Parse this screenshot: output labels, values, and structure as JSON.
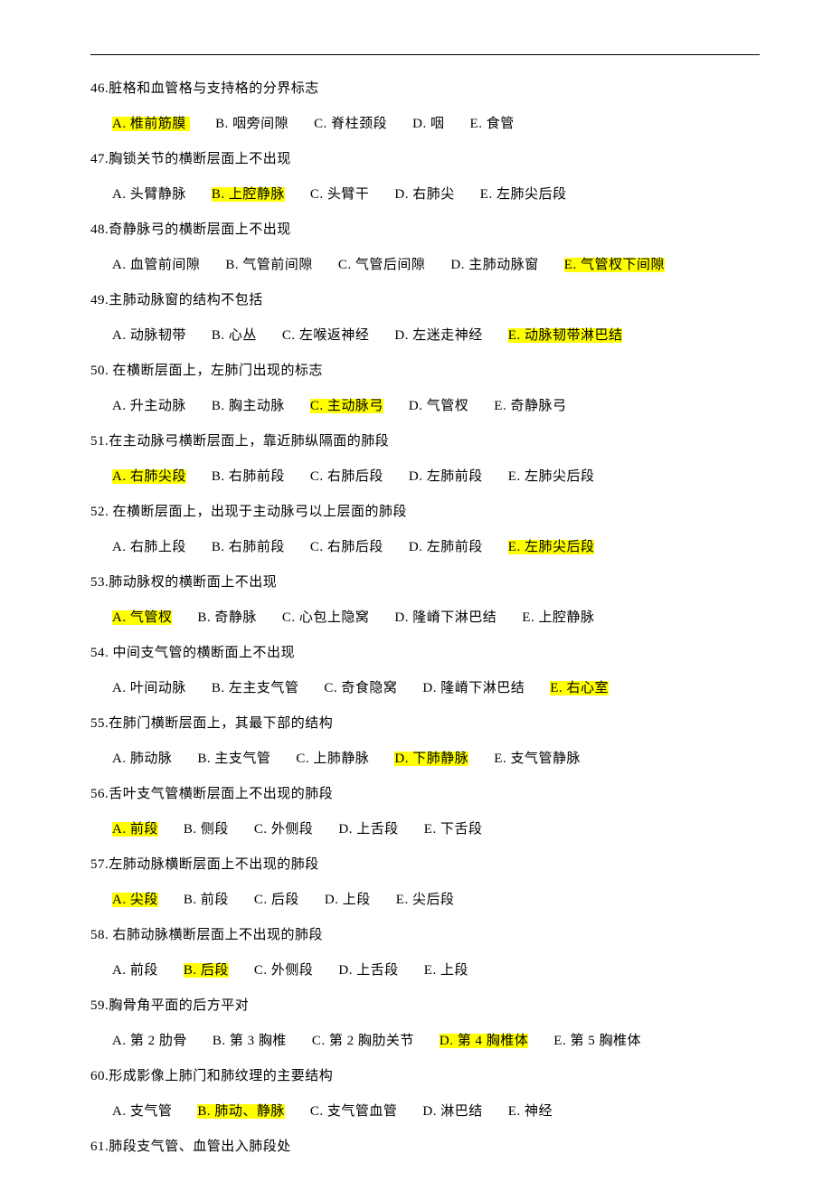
{
  "highlight_color": "#ffff00",
  "questions": [
    {
      "num": "46.",
      "stem": "脏格和血管格与支持格的分界标志",
      "opts": [
        {
          "k": "A.",
          "t": "椎前筋膜",
          "hl": true,
          "pad": true
        },
        {
          "k": "B.",
          "t": "咽旁间隙"
        },
        {
          "k": "C.",
          "t": "脊柱颈段"
        },
        {
          "k": "D.",
          "t": "咽"
        },
        {
          "k": "E.",
          "t": "食管"
        }
      ]
    },
    {
      "num": "47.",
      "stem": "胸锁关节的横断层面上不出现",
      "opts": [
        {
          "k": "A.",
          "t": "头臂静脉"
        },
        {
          "k": "B.",
          "t": "上腔静脉",
          "hl": true
        },
        {
          "k": "C.",
          "t": "头臂干"
        },
        {
          "k": "D.",
          "t": "右肺尖"
        },
        {
          "k": "E.",
          "t": "左肺尖后段"
        }
      ]
    },
    {
      "num": "48.",
      "stem": "奇静脉弓的横断层面上不出现",
      "opts": [
        {
          "k": "A.",
          "t": "血管前间隙"
        },
        {
          "k": "B.",
          "t": "气管前间隙"
        },
        {
          "k": "C.",
          "t": "气管后间隙"
        },
        {
          "k": "D.",
          "t": "主肺动脉窗"
        },
        {
          "k": "E.",
          "t": "气管杈下间隙",
          "hl": true
        }
      ]
    },
    {
      "num": "49.",
      "stem": "主肺动脉窗的结构不包括",
      "opts": [
        {
          "k": "A.",
          "t": "动脉韧带"
        },
        {
          "k": "B.",
          "t": "心丛"
        },
        {
          "k": "C.",
          "t": "左喉返神经"
        },
        {
          "k": "D.",
          "t": "左迷走神经"
        },
        {
          "k": "E.",
          "t": "动脉韧带淋巴结",
          "hl": true
        }
      ]
    },
    {
      "num": "50.",
      "stem": " 在横断层面上，左肺门出现的标志",
      "opts": [
        {
          "k": "A.",
          "t": "升主动脉"
        },
        {
          "k": "B.",
          "t": "胸主动脉"
        },
        {
          "k": "C.",
          "t": "主动脉弓",
          "hl": true
        },
        {
          "k": "D.",
          "t": "气管杈"
        },
        {
          "k": "E.",
          "t": "奇静脉弓"
        }
      ]
    },
    {
      "num": "51.",
      "stem": "在主动脉弓横断层面上，靠近肺纵隔面的肺段",
      "opts": [
        {
          "k": "A.",
          "t": "右肺尖段",
          "hl": true
        },
        {
          "k": "B.",
          "t": "右肺前段"
        },
        {
          "k": "C.",
          "t": "右肺后段"
        },
        {
          "k": "D.",
          "t": "左肺前段"
        },
        {
          "k": "E.",
          "t": "左肺尖后段"
        }
      ]
    },
    {
      "num": "52.",
      "stem": " 在横断层面上，出现于主动脉弓以上层面的肺段",
      "opts": [
        {
          "k": "A.",
          "t": "右肺上段"
        },
        {
          "k": "B.",
          "t": "右肺前段"
        },
        {
          "k": "C.",
          "t": "右肺后段"
        },
        {
          "k": "D.",
          "t": "左肺前段"
        },
        {
          "k": "E.",
          "t": "左肺尖后段",
          "hl": true
        }
      ]
    },
    {
      "num": "53.",
      "stem": "肺动脉杈的横断面上不出现",
      "opts": [
        {
          "k": "A.",
          "t": "气管杈",
          "hl": true
        },
        {
          "k": "B.",
          "t": "奇静脉"
        },
        {
          "k": "C.",
          "t": "心包上隐窝"
        },
        {
          "k": "D.",
          "t": "隆嵴下淋巴结"
        },
        {
          "k": "E.",
          "t": "上腔静脉"
        }
      ]
    },
    {
      "num": "54.",
      "stem": " 中间支气管的横断面上不出现",
      "opts": [
        {
          "k": "A.",
          "t": "叶间动脉"
        },
        {
          "k": "B.",
          "t": "左主支气管"
        },
        {
          "k": "C.",
          "t": "奇食隐窝"
        },
        {
          "k": "D.",
          "t": "隆嵴下淋巴结"
        },
        {
          "k": "E.",
          "t": "右心室",
          "hl": true
        }
      ]
    },
    {
      "num": "55.",
      "stem": "在肺门横断层面上，其最下部的结构",
      "opts": [
        {
          "k": "A.",
          "t": "肺动脉"
        },
        {
          "k": "B.",
          "t": "主支气管"
        },
        {
          "k": "C.",
          "t": "上肺静脉"
        },
        {
          "k": "D.",
          "t": "下肺静脉",
          "hl": true
        },
        {
          "k": "E.",
          "t": "支气管静脉"
        }
      ]
    },
    {
      "num": "56.",
      "stem": "舌叶支气管横断层面上不出现的肺段",
      "opts": [
        {
          "k": "A.",
          "t": "前段",
          "hl": true
        },
        {
          "k": "B.",
          "t": "侧段"
        },
        {
          "k": "C.",
          "t": "外侧段"
        },
        {
          "k": "D.",
          "t": "上舌段"
        },
        {
          "k": "E.",
          "t": "下舌段"
        }
      ]
    },
    {
      "num": "57.",
      "stem": "左肺动脉横断层面上不出现的肺段",
      "opts": [
        {
          "k": "A.",
          "t": "尖段",
          "hl": true
        },
        {
          "k": "B.",
          "t": " 前段"
        },
        {
          "k": "C.",
          "t": "后段"
        },
        {
          "k": "D.",
          "t": "上段"
        },
        {
          "k": "E.",
          "t": "尖后段"
        }
      ]
    },
    {
      "num": "58.",
      "stem": " 右肺动脉横断层面上不出现的肺段",
      "opts": [
        {
          "k": "A.",
          "t": "前段"
        },
        {
          "k": "B.",
          "t": "后段",
          "hl": true
        },
        {
          "k": "C.",
          "t": "外侧段"
        },
        {
          "k": "D.",
          "t": "上舌段"
        },
        {
          "k": "E.",
          "t": "上段"
        }
      ]
    },
    {
      "num": "59.",
      "stem": "胸骨角平面的后方平对",
      "opts": [
        {
          "k": "A.",
          "t": "第 2 肋骨"
        },
        {
          "k": "B.",
          "t": "第 3 胸椎"
        },
        {
          "k": "C.",
          "t": " 第 2 胸肋关节"
        },
        {
          "k": "D.",
          "t": "第 4 胸椎体",
          "hl": true
        },
        {
          "k": "E.",
          "t": "第 5 胸椎体"
        }
      ]
    },
    {
      "num": "60.",
      "stem": "形成影像上肺门和肺纹理的主要结构",
      "opts": [
        {
          "k": "A.",
          "t": "支气管"
        },
        {
          "k": "B.",
          "t": "肺动、静脉",
          "hl": true
        },
        {
          "k": "C.",
          "t": "支气管血管"
        },
        {
          "k": "D.",
          "t": "淋巴结"
        },
        {
          "k": "E.",
          "t": "神经"
        }
      ]
    },
    {
      "num": "61.",
      "stem": "肺段支气管、血管出入肺段处",
      "opts": []
    }
  ]
}
